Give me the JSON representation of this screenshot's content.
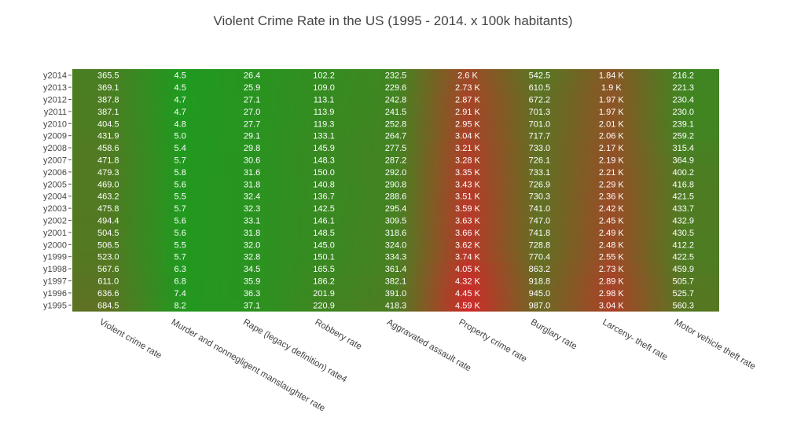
{
  "chart_data": {
    "type": "heatmap",
    "title": "Violent Crime Rate in the US (1995 - 2014. x 100k habitants)",
    "colorscale": {
      "low": "#1f9a1f",
      "high": "#cf2a2a"
    },
    "columns": [
      "Violent crime  rate",
      "Murder and  nonnegligent  manslaughter rate",
      "Rape (legacy definition) rate4",
      "Robbery rate",
      "Aggravated assault rate",
      "Property crime  rate",
      "Burglary rate",
      "Larceny- theft rate",
      "Motor  vehicle theft  rate"
    ],
    "rows": [
      {
        "label": "y2014",
        "values": [
          365.5,
          4.5,
          26.4,
          102.2,
          232.5,
          2596.1,
          542.5,
          1837.3,
          216.2
        ],
        "text": [
          "365.5",
          "4.5",
          "26.4",
          "102.2",
          "232.5",
          "2.6 K",
          "542.5",
          "1.84 K",
          "216.2"
        ]
      },
      {
        "label": "y2013",
        "values": [
          369.1,
          4.5,
          25.9,
          109.0,
          229.6,
          2730.7,
          610.5,
          1899.4,
          221.3
        ],
        "text": [
          "369.1",
          "4.5",
          "25.9",
          "109.0",
          "229.6",
          "2.73 K",
          "610.5",
          "1.9 K",
          "221.3"
        ]
      },
      {
        "label": "y2012",
        "values": [
          387.8,
          4.7,
          27.1,
          113.1,
          242.8,
          2868.0,
          672.2,
          1965.4,
          230.4
        ],
        "text": [
          "387.8",
          "4.7",
          "27.1",
          "113.1",
          "242.8",
          "2.87 K",
          "672.2",
          "1.97 K",
          "230.4"
        ]
      },
      {
        "label": "y2011",
        "values": [
          387.1,
          4.7,
          27.0,
          113.9,
          241.5,
          2905.4,
          701.3,
          1974.1,
          230.0
        ],
        "text": [
          "387.1",
          "4.7",
          "27.0",
          "113.9",
          "241.5",
          "2.91 K",
          "701.3",
          "1.97 K",
          "230.0"
        ]
      },
      {
        "label": "y2010",
        "values": [
          404.5,
          4.8,
          27.7,
          119.3,
          252.8,
          2945.9,
          701.0,
          2005.8,
          239.1
        ],
        "text": [
          "404.5",
          "4.8",
          "27.7",
          "119.3",
          "252.8",
          "2.95 K",
          "701.0",
          "2.01 K",
          "239.1"
        ]
      },
      {
        "label": "y2009",
        "values": [
          431.9,
          5.0,
          29.1,
          133.1,
          264.7,
          3041.3,
          717.7,
          2064.5,
          259.2
        ],
        "text": [
          "431.9",
          "5.0",
          "29.1",
          "133.1",
          "264.7",
          "3.04 K",
          "717.7",
          "2.06 K",
          "259.2"
        ]
      },
      {
        "label": "y2008",
        "values": [
          458.6,
          5.4,
          29.8,
          145.9,
          277.5,
          3214.6,
          733.0,
          2166.1,
          315.4
        ],
        "text": [
          "458.6",
          "5.4",
          "29.8",
          "145.9",
          "277.5",
          "3.21 K",
          "733.0",
          "2.17 K",
          "315.4"
        ]
      },
      {
        "label": "y2007",
        "values": [
          471.8,
          5.7,
          30.6,
          148.3,
          287.2,
          3276.4,
          726.1,
          2185.4,
          364.9
        ],
        "text": [
          "471.8",
          "5.7",
          "30.6",
          "148.3",
          "287.2",
          "3.28 K",
          "726.1",
          "2.19 K",
          "364.9"
        ]
      },
      {
        "label": "y2006",
        "values": [
          479.3,
          5.8,
          31.6,
          150.0,
          292.0,
          3346.6,
          733.1,
          2213.2,
          400.2
        ],
        "text": [
          "479.3",
          "5.8",
          "31.6",
          "150.0",
          "292.0",
          "3.35 K",
          "733.1",
          "2.21 K",
          "400.2"
        ]
      },
      {
        "label": "y2005",
        "values": [
          469.0,
          5.6,
          31.8,
          140.8,
          290.8,
          3431.5,
          726.9,
          2287.8,
          416.8
        ],
        "text": [
          "469.0",
          "5.6",
          "31.8",
          "140.8",
          "290.8",
          "3.43 K",
          "726.9",
          "2.29 K",
          "416.8"
        ]
      },
      {
        "label": "y2004",
        "values": [
          463.2,
          5.5,
          32.4,
          136.7,
          288.6,
          3514.1,
          730.3,
          2362.3,
          421.5
        ],
        "text": [
          "463.2",
          "5.5",
          "32.4",
          "136.7",
          "288.6",
          "3.51 K",
          "730.3",
          "2.36 K",
          "421.5"
        ]
      },
      {
        "label": "y2003",
        "values": [
          475.8,
          5.7,
          32.3,
          142.5,
          295.4,
          3591.2,
          741.0,
          2416.5,
          433.7
        ],
        "text": [
          "475.8",
          "5.7",
          "32.3",
          "142.5",
          "295.4",
          "3.59 K",
          "741.0",
          "2.42 K",
          "433.7"
        ]
      },
      {
        "label": "y2002",
        "values": [
          494.4,
          5.6,
          33.1,
          146.1,
          309.5,
          3630.6,
          747.0,
          2450.7,
          432.9
        ],
        "text": [
          "494.4",
          "5.6",
          "33.1",
          "146.1",
          "309.5",
          "3.63 K",
          "747.0",
          "2.45 K",
          "432.9"
        ]
      },
      {
        "label": "y2001",
        "values": [
          504.5,
          5.6,
          31.8,
          148.5,
          318.6,
          3658.1,
          741.8,
          2485.7,
          430.5
        ],
        "text": [
          "504.5",
          "5.6",
          "31.8",
          "148.5",
          "318.6",
          "3.66 K",
          "741.8",
          "2.49 K",
          "430.5"
        ]
      },
      {
        "label": "y2000",
        "values": [
          506.5,
          5.5,
          32.0,
          145.0,
          324.0,
          3618.3,
          728.8,
          2477.3,
          412.2
        ],
        "text": [
          "506.5",
          "5.5",
          "32.0",
          "145.0",
          "324.0",
          "3.62 K",
          "728.8",
          "2.48 K",
          "412.2"
        ]
      },
      {
        "label": "y1999",
        "values": [
          523.0,
          5.7,
          32.8,
          150.1,
          334.3,
          3743.6,
          770.4,
          2550.7,
          422.5
        ],
        "text": [
          "523.0",
          "5.7",
          "32.8",
          "150.1",
          "334.3",
          "3.74 K",
          "770.4",
          "2.55 K",
          "422.5"
        ]
      },
      {
        "label": "y1998",
        "values": [
          567.6,
          6.3,
          34.5,
          165.5,
          361.4,
          4052.5,
          863.2,
          2729.5,
          459.9
        ],
        "text": [
          "567.6",
          "6.3",
          "34.5",
          "165.5",
          "361.4",
          "4.05 K",
          "863.2",
          "2.73 K",
          "459.9"
        ]
      },
      {
        "label": "y1997",
        "values": [
          611.0,
          6.8,
          35.9,
          186.2,
          382.1,
          4316.3,
          918.8,
          2891.8,
          505.7
        ],
        "text": [
          "611.0",
          "6.8",
          "35.9",
          "186.2",
          "382.1",
          "4.32 K",
          "918.8",
          "2.89 K",
          "505.7"
        ]
      },
      {
        "label": "y1996",
        "values": [
          636.6,
          7.4,
          36.3,
          201.9,
          391.0,
          4451.0,
          945.0,
          2980.3,
          525.7
        ],
        "text": [
          "636.6",
          "7.4",
          "36.3",
          "201.9",
          "391.0",
          "4.45 K",
          "945.0",
          "2.98 K",
          "525.7"
        ]
      },
      {
        "label": "y1995",
        "values": [
          684.5,
          8.2,
          37.1,
          220.9,
          418.3,
          4590.5,
          987.0,
          3043.2,
          560.3
        ],
        "text": [
          "684.5",
          "8.2",
          "37.1",
          "220.9",
          "418.3",
          "4.59 K",
          "987.0",
          "3.04 K",
          "560.3"
        ]
      }
    ]
  }
}
